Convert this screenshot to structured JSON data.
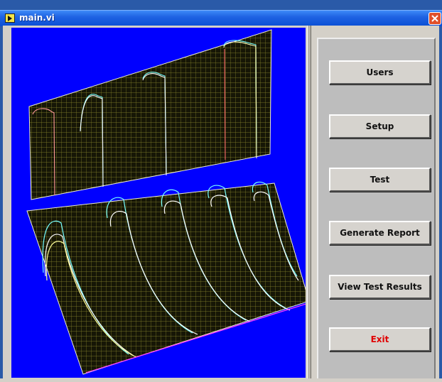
{
  "window": {
    "title": "main.vi",
    "icon": "labview-vi-icon"
  },
  "titlebar": {
    "close_icon": "close-icon",
    "close_color": "#e0502a"
  },
  "graph": {
    "background": "#0000ff"
  },
  "buttons": {
    "users": "Users",
    "setup": "Setup",
    "test": "Test",
    "generate_report": "Generate Report",
    "view_test_results": "View Test Results",
    "exit": "Exit"
  },
  "colors": {
    "exit_text": "#e00000",
    "panel_bg": "#bdbdbd"
  }
}
